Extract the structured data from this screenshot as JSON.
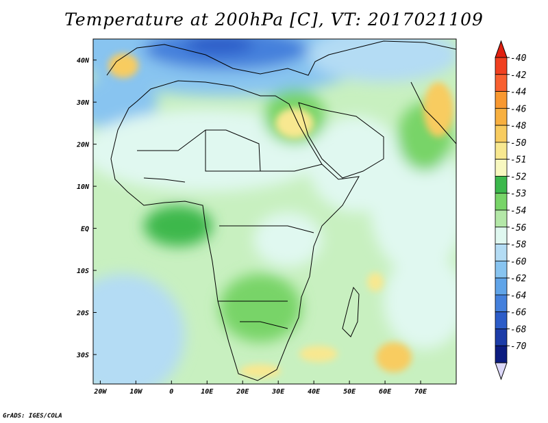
{
  "title": "Temperature at 200hPa [C], VT: 2017021109",
  "credit": "GrADS: IGES/COLA",
  "map": {
    "lon_range": [
      -22,
      80
    ],
    "lat_range": [
      -37,
      45
    ],
    "lon_ticks": [
      {
        "value": -20,
        "label": "20W"
      },
      {
        "value": -10,
        "label": "10W"
      },
      {
        "value": 0,
        "label": "0"
      },
      {
        "value": 10,
        "label": "10E"
      },
      {
        "value": 20,
        "label": "20E"
      },
      {
        "value": 30,
        "label": "30E"
      },
      {
        "value": 40,
        "label": "40E"
      },
      {
        "value": 50,
        "label": "50E"
      },
      {
        "value": 60,
        "label": "60E"
      },
      {
        "value": 70,
        "label": "70E"
      }
    ],
    "lat_ticks": [
      {
        "value": 40,
        "label": "40N"
      },
      {
        "value": 30,
        "label": "30N"
      },
      {
        "value": 20,
        "label": "20N"
      },
      {
        "value": 10,
        "label": "10N"
      },
      {
        "value": 0,
        "label": "EQ"
      },
      {
        "value": -10,
        "label": "10S"
      },
      {
        "value": -20,
        "label": "20S"
      },
      {
        "value": -30,
        "label": "30S"
      }
    ],
    "background_color": "#c8f0c0"
  },
  "colorbar": {
    "orientation": "vertical",
    "placement": "right",
    "levels": [
      {
        "label": "-40",
        "color": "#f04020"
      },
      {
        "label": "-42",
        "color": "#f86030"
      },
      {
        "label": "-44",
        "color": "#f89830"
      },
      {
        "label": "-46",
        "color": "#f8b040"
      },
      {
        "label": "-48",
        "color": "#f8cc60"
      },
      {
        "label": "-50",
        "color": "#f8e890"
      },
      {
        "label": "-51",
        "color": "#f8f8c0"
      },
      {
        "label": "-52",
        "color": "#3cb84c"
      },
      {
        "label": "-53",
        "color": "#78d468"
      },
      {
        "label": "-54",
        "color": "#b4e8a8"
      },
      {
        "label": "-56",
        "color": "#e0f8f0"
      },
      {
        "label": "-58",
        "color": "#b4dcf4"
      },
      {
        "label": "-60",
        "color": "#88c4f0"
      },
      {
        "label": "-62",
        "color": "#60a4e8"
      },
      {
        "label": "-64",
        "color": "#4480dc"
      },
      {
        "label": "-66",
        "color": "#2c5cc8"
      },
      {
        "label": "-68",
        "color": "#1c3ca8"
      },
      {
        "label": "-70",
        "color": "#0c1c80"
      }
    ],
    "top_arrow_color": "#e02010",
    "bottom_arrow_color": "#dcd8f8"
  }
}
